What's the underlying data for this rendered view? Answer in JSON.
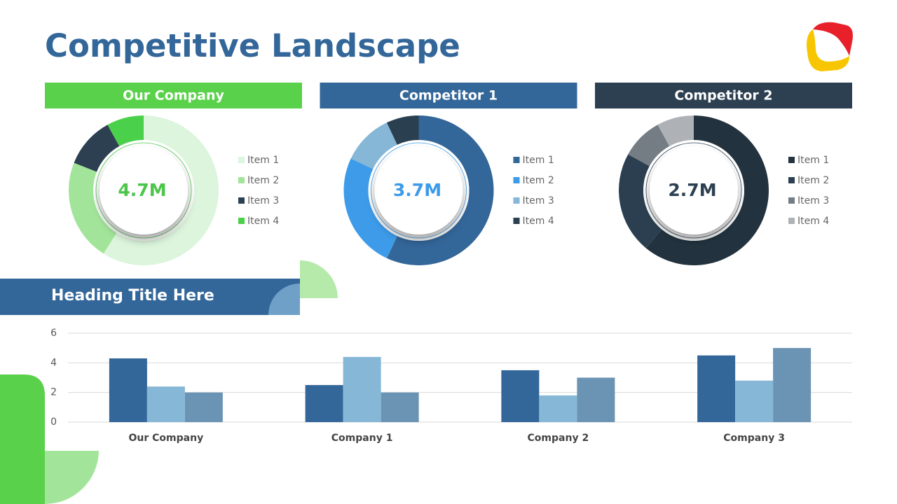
{
  "title": "Competitive Landscape",
  "chart_data": [
    {
      "type": "donut",
      "title": "Our Company",
      "center_label": "4.7M",
      "header_color": "#5ad14a",
      "label_color": "#4bc64b",
      "categories": [
        "Item 1",
        "Item 2",
        "Item 3",
        "Item 4"
      ],
      "values": [
        59,
        22,
        11,
        8
      ],
      "colors": [
        "#dcf5dc",
        "#a2e59a",
        "#2d4052",
        "#4bd04b"
      ]
    },
    {
      "type": "donut",
      "title": "Competitor 1",
      "center_label": "3.7M",
      "header_color": "#336699",
      "label_color": "#3d9be9",
      "categories": [
        "Item 1",
        "Item 2",
        "Item 3",
        "Item 4"
      ],
      "values": [
        57,
        25,
        11,
        7
      ],
      "colors": [
        "#336699",
        "#3d9be9",
        "#86b7d6",
        "#2a3f50"
      ]
    },
    {
      "type": "donut",
      "title": "Competitor 2",
      "center_label": "2.7M",
      "header_color": "#2d4052",
      "label_color": "#2d4052",
      "categories": [
        "Item 1",
        "Item 2",
        "Item 3",
        "Item 4"
      ],
      "values": [
        61,
        22,
        9,
        8
      ],
      "colors": [
        "#22333f",
        "#2b3f50",
        "#747c84",
        "#aeb2b7"
      ]
    },
    {
      "type": "bar",
      "title": "Heading Title Here",
      "categories": [
        "Our Company",
        "Company 1",
        "Company 2",
        "Company 3"
      ],
      "series": [
        {
          "color": "#336699",
          "values": [
            4.3,
            2.5,
            3.5,
            4.5
          ]
        },
        {
          "color": "#86b7d6",
          "values": [
            2.4,
            4.4,
            1.8,
            2.8
          ]
        },
        {
          "color": "#6b93b3",
          "values": [
            2.0,
            2.0,
            3.0,
            5.0
          ]
        }
      ],
      "ylim": [
        0,
        6
      ],
      "yticks": [
        0,
        2,
        4,
        6
      ],
      "grid": true
    }
  ]
}
